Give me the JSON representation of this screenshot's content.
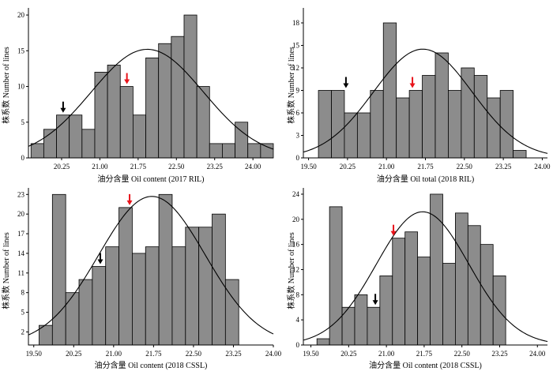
{
  "chart_data": [
    {
      "type": "bar",
      "xlabel": "油分含量 Oil content (2017 RIL)",
      "ylabel": "株系数 Number of lines",
      "xticks": [
        "20.25",
        "21.00",
        "21.75",
        "22.50",
        "23.25",
        "24.00"
      ],
      "yticks": [
        "0",
        "5",
        "10",
        "15",
        "20"
      ],
      "xlim": [
        19.6,
        24.4
      ],
      "ylim": [
        0,
        21
      ],
      "bin_width": 0.25,
      "bin_starts": [
        19.65,
        19.9,
        20.15,
        20.4,
        20.65,
        20.9,
        21.15,
        21.4,
        21.65,
        21.9,
        22.15,
        22.4,
        22.65,
        22.9,
        23.15,
        23.4,
        23.65,
        23.9,
        24.15
      ],
      "values": [
        2,
        4,
        6,
        6,
        4,
        12,
        13,
        10,
        6,
        14,
        16,
        17,
        20,
        10,
        2,
        2,
        5,
        2,
        2
      ],
      "normal_fit": {
        "mean": 21.93,
        "sd": 1.1,
        "peak": 15.2
      },
      "arrows": [
        {
          "color": "#000000",
          "x": 20.28,
          "y": 6
        },
        {
          "color": "#e8141b",
          "x": 21.53,
          "y": 10
        }
      ]
    },
    {
      "type": "bar",
      "xlabel": "油分含量 Oil total (2018 RIL)",
      "ylabel": "株系数 Number of lines",
      "xticks": [
        "19.50",
        "20.25",
        "21.00",
        "21.75",
        "22.50",
        "23.25",
        "24.00"
      ],
      "yticks": [
        "0",
        "3",
        "6",
        "9",
        "12",
        "15",
        "18"
      ],
      "xlim": [
        19.4,
        24.1
      ],
      "ylim": [
        0,
        20
      ],
      "bin_width": 0.25,
      "bin_starts": [
        19.69,
        19.94,
        20.19,
        20.44,
        20.69,
        20.94,
        21.19,
        21.44,
        21.69,
        21.94,
        22.19,
        22.44,
        22.69,
        22.94,
        23.19,
        23.44
      ],
      "values": [
        9,
        9,
        6,
        6,
        9,
        18,
        8,
        9,
        11,
        14,
        9,
        12,
        11,
        8,
        9,
        1
      ],
      "normal_fit": {
        "mean": 21.7,
        "sd": 0.95,
        "peak": 14.5
      },
      "arrows": [
        {
          "color": "#000000",
          "x": 20.22,
          "y": 9
        },
        {
          "color": "#e8141b",
          "x": 21.5,
          "y": 9
        }
      ]
    },
    {
      "type": "bar",
      "xlabel": "油分含量 Oil content (2018 CSSL)",
      "ylabel": "株系数 Number of lines",
      "xticks": [
        "19.50",
        "20.25",
        "21.00",
        "21.75",
        "22.50",
        "23.25",
        "24.00"
      ],
      "yticks": [
        "2",
        "5",
        "8",
        "11",
        "14",
        "17",
        "20",
        "23"
      ],
      "xlim": [
        19.4,
        24.0
      ],
      "ylim": [
        0,
        24
      ],
      "bin_width": 0.25,
      "bin_starts": [
        19.6,
        19.85,
        20.1,
        20.35,
        20.6,
        20.85,
        21.1,
        21.35,
        21.6,
        21.85,
        22.1,
        22.35,
        22.6,
        22.85,
        23.1
      ],
      "values": [
        3,
        23,
        8,
        10,
        12,
        15,
        21,
        14,
        15,
        23,
        15,
        18,
        18,
        20,
        10
      ],
      "normal_fit": {
        "mean": 21.72,
        "sd": 1.0,
        "peak": 22.7
      },
      "arrows": [
        {
          "color": "#000000",
          "x": 20.75,
          "y": 12
        },
        {
          "color": "#e8141b",
          "x": 21.3,
          "y": 21
        }
      ]
    },
    {
      "type": "bar",
      "xlabel": "油分含量 Oil content (2018 CSSL)",
      "ylabel": "株系数 Number of lines",
      "xticks": [
        "19.50",
        "20.25",
        "21.00",
        "21.75",
        "22.50",
        "23.25",
        "24.00"
      ],
      "yticks": [
        "0",
        "4",
        "8",
        "12",
        "16",
        "20",
        "24"
      ],
      "xlim": [
        19.35,
        24.2
      ],
      "ylim": [
        0,
        25
      ],
      "bin_width": 0.25,
      "bin_starts": [
        19.62,
        19.87,
        20.12,
        20.37,
        20.62,
        20.87,
        21.12,
        21.37,
        21.62,
        21.87,
        22.12,
        22.37,
        22.62,
        22.87,
        23.12
      ],
      "values": [
        1,
        22,
        6,
        8,
        6,
        11,
        17,
        18,
        14,
        24,
        13,
        21,
        19,
        16,
        11
      ],
      "normal_fit": {
        "mean": 21.72,
        "sd": 0.92,
        "peak": 21.2
      },
      "arrows": [
        {
          "color": "#000000",
          "x": 20.78,
          "y": 6
        },
        {
          "color": "#e8141b",
          "x": 21.14,
          "y": 17
        }
      ]
    }
  ]
}
